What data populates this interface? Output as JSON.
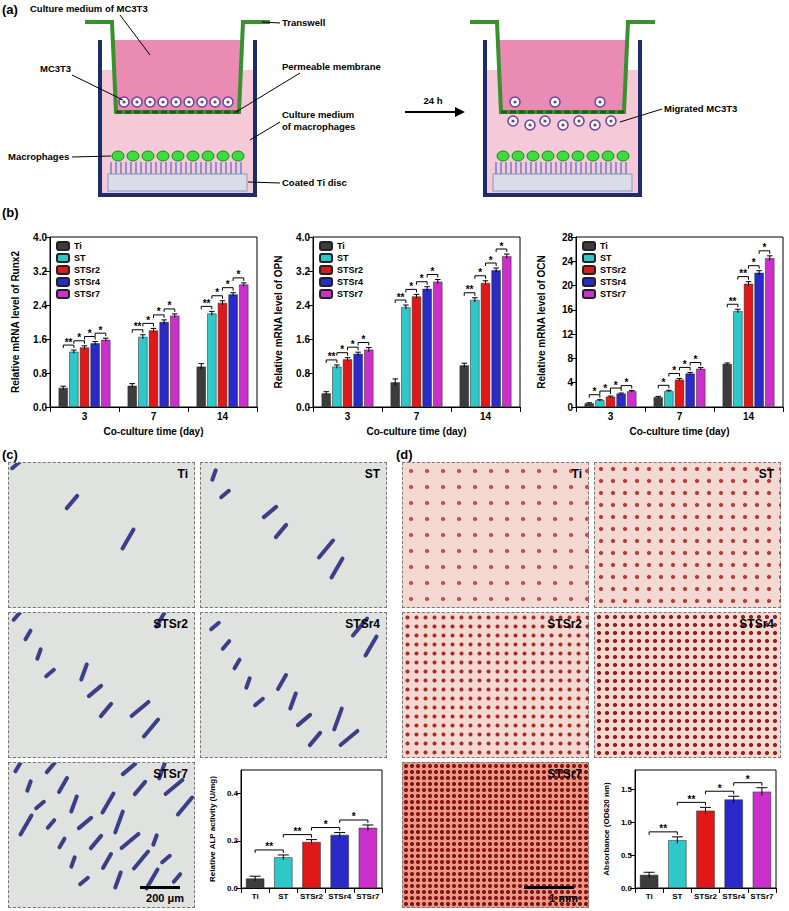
{
  "panel_labels": {
    "a": "(a)",
    "b": "(b)",
    "c": "(c)",
    "d": "(d)"
  },
  "schematic": {
    "culture_medium_mc3t3": "Culture medium of MC3T3",
    "mc3t3": "MC3T3",
    "transwell": "Transwell",
    "membrane": "Permeable membrane",
    "culture_medium_macrophages": [
      "Culture medium",
      "of macrophages"
    ],
    "macrophages": "Macrophages",
    "ti_disc": "Coated Ti disc",
    "time": "24 h",
    "migrated": "Migrated MC3T3"
  },
  "chart_data": [
    {
      "type": "bar",
      "ylabel": "Relative mRNA level of Runx2",
      "xlabel": "Co-culture time (day)",
      "categories": [
        "3",
        "7",
        "14"
      ],
      "series": [
        {
          "name": "Ti",
          "color": "#3c3c3c",
          "values": [
            0.45,
            0.5,
            0.95
          ],
          "errors": [
            0.04,
            0.05,
            0.07
          ]
        },
        {
          "name": "ST",
          "color": "#2ec8c8",
          "values": [
            1.3,
            1.65,
            2.2
          ],
          "errors": [
            0.04,
            0.05,
            0.05
          ]
        },
        {
          "name": "STSr2",
          "color": "#e01818",
          "values": [
            1.4,
            1.8,
            2.45
          ],
          "errors": [
            0.04,
            0.05,
            0.05
          ]
        },
        {
          "name": "STSr4",
          "color": "#2a2ac8",
          "values": [
            1.5,
            2.0,
            2.65
          ],
          "errors": [
            0.04,
            0.05,
            0.04
          ]
        },
        {
          "name": "STSr7",
          "color": "#cc30cc",
          "values": [
            1.58,
            2.15,
            2.88
          ],
          "errors": [
            0.04,
            0.04,
            0.04
          ]
        }
      ],
      "ylim": [
        0,
        4
      ],
      "yticks": [
        {
          "value": 0,
          "label": "0.0"
        },
        0.8,
        1.6,
        2.4,
        3.2,
        {
          "value": 4,
          "label": "4.0"
        }
      ],
      "grid": false,
      "legend": "upper left",
      "significance": [
        {
          "category": "3",
          "pair": [
            "Ti",
            "ST"
          ],
          "text": "**"
        },
        {
          "category": "3",
          "pair": [
            "ST",
            "STSr2"
          ],
          "text": "*"
        },
        {
          "category": "3",
          "pair": [
            "STSr2",
            "STSr4"
          ],
          "text": "*"
        },
        {
          "category": "3",
          "pair": [
            "STSr4",
            "STSr7"
          ],
          "text": "*"
        },
        {
          "category": "7",
          "pair": [
            "Ti",
            "ST"
          ],
          "text": "**"
        },
        {
          "category": "7",
          "pair": [
            "ST",
            "STSr2"
          ],
          "text": "*"
        },
        {
          "category": "7",
          "pair": [
            "STSr2",
            "STSr4"
          ],
          "text": "*"
        },
        {
          "category": "7",
          "pair": [
            "STSr4",
            "STSr7"
          ],
          "text": "*"
        },
        {
          "category": "14",
          "pair": [
            "Ti",
            "ST"
          ],
          "text": "**"
        },
        {
          "category": "14",
          "pair": [
            "ST",
            "STSr2"
          ],
          "text": "*"
        },
        {
          "category": "14",
          "pair": [
            "STSr2",
            "STSr4"
          ],
          "text": "*"
        },
        {
          "category": "14",
          "pair": [
            "STSr4",
            "STSr7"
          ],
          "text": "*"
        }
      ]
    },
    {
      "type": "bar",
      "ylabel": "Relative mRNA level of OPN",
      "xlabel": "Co-culture time (day)",
      "categories": [
        "3",
        "7",
        "14"
      ],
      "series": [
        {
          "name": "Ti",
          "color": "#3c3c3c",
          "values": [
            0.32,
            0.58,
            0.98
          ],
          "errors": [
            0.04,
            0.08,
            0.05
          ]
        },
        {
          "name": "ST",
          "color": "#2ec8c8",
          "values": [
            0.95,
            2.35,
            2.52
          ],
          "errors": [
            0.04,
            0.05,
            0.05
          ]
        },
        {
          "name": "STSr2",
          "color": "#e01818",
          "values": [
            1.12,
            2.6,
            2.92
          ],
          "errors": [
            0.04,
            0.05,
            0.05
          ]
        },
        {
          "name": "STSr4",
          "color": "#2a2ac8",
          "values": [
            1.25,
            2.78,
            3.22
          ],
          "errors": [
            0.04,
            0.05,
            0.05
          ]
        },
        {
          "name": "STSr7",
          "color": "#cc30cc",
          "values": [
            1.35,
            2.95,
            3.55
          ],
          "errors": [
            0.05,
            0.05,
            0.05
          ]
        }
      ],
      "ylim": [
        0,
        4
      ],
      "yticks": [
        {
          "value": 0,
          "label": "0.0"
        },
        0.8,
        1.6,
        2.4,
        3.2,
        {
          "value": 4,
          "label": "4.0"
        }
      ],
      "grid": false,
      "legend": "upper left",
      "significance": [
        {
          "category": "3",
          "pair": [
            "Ti",
            "ST"
          ],
          "text": "**"
        },
        {
          "category": "3",
          "pair": [
            "ST",
            "STSr2"
          ],
          "text": "*"
        },
        {
          "category": "3",
          "pair": [
            "STSr2",
            "STSr4"
          ],
          "text": "*"
        },
        {
          "category": "3",
          "pair": [
            "STSr4",
            "STSr7"
          ],
          "text": "*"
        },
        {
          "category": "7",
          "pair": [
            "Ti",
            "ST"
          ],
          "text": "**"
        },
        {
          "category": "7",
          "pair": [
            "ST",
            "STSr2"
          ],
          "text": "*"
        },
        {
          "category": "7",
          "pair": [
            "STSr2",
            "STSr4"
          ],
          "text": "*"
        },
        {
          "category": "7",
          "pair": [
            "STSr4",
            "STSr7"
          ],
          "text": "*"
        },
        {
          "category": "14",
          "pair": [
            "Ti",
            "ST"
          ],
          "text": "**"
        },
        {
          "category": "14",
          "pair": [
            "ST",
            "STSr2"
          ],
          "text": "*"
        },
        {
          "category": "14",
          "pair": [
            "STSr2",
            "STSr4"
          ],
          "text": "*"
        },
        {
          "category": "14",
          "pair": [
            "STSr4",
            "STSr7"
          ],
          "text": "*"
        }
      ]
    },
    {
      "type": "bar",
      "ylabel": "Relative mRNA level of OCN",
      "xlabel": "Co-culture time (day)",
      "categories": [
        "3",
        "7",
        "14"
      ],
      "series": [
        {
          "name": "Ti",
          "color": "#3c3c3c",
          "values": [
            0.6,
            1.6,
            7.1
          ],
          "errors": [
            0.1,
            0.15,
            0.15
          ]
        },
        {
          "name": "ST",
          "color": "#2ec8c8",
          "values": [
            1.1,
            2.6,
            15.8
          ],
          "errors": [
            0.1,
            0.15,
            0.3
          ]
        },
        {
          "name": "STSr2",
          "color": "#e01818",
          "values": [
            1.7,
            4.5,
            20.3
          ],
          "errors": [
            0.1,
            0.2,
            0.35
          ]
        },
        {
          "name": "STSr4",
          "color": "#2a2ac8",
          "values": [
            2.2,
            5.5,
            22.1
          ],
          "errors": [
            0.1,
            0.2,
            0.35
          ]
        },
        {
          "name": "STSr7",
          "color": "#cc30cc",
          "values": [
            2.6,
            6.3,
            24.5
          ],
          "errors": [
            0.1,
            0.2,
            0.4
          ]
        }
      ],
      "ylim": [
        0,
        28
      ],
      "yticks": [
        0,
        4,
        8,
        12,
        16,
        20,
        24,
        28
      ],
      "grid": false,
      "legend": "upper left",
      "significance": [
        {
          "category": "3",
          "pair": [
            "Ti",
            "ST"
          ],
          "text": "*"
        },
        {
          "category": "3",
          "pair": [
            "ST",
            "STSr2"
          ],
          "text": "*"
        },
        {
          "category": "3",
          "pair": [
            "STSr2",
            "STSr4"
          ],
          "text": "*"
        },
        {
          "category": "3",
          "pair": [
            "STSr4",
            "STSr7"
          ],
          "text": "*"
        },
        {
          "category": "7",
          "pair": [
            "Ti",
            "ST"
          ],
          "text": "*"
        },
        {
          "category": "7",
          "pair": [
            "ST",
            "STSr2"
          ],
          "text": "*"
        },
        {
          "category": "7",
          "pair": [
            "STSr2",
            "STSr4"
          ],
          "text": "*"
        },
        {
          "category": "7",
          "pair": [
            "STSr4",
            "STSr7"
          ],
          "text": "*"
        },
        {
          "category": "14",
          "pair": [
            "Ti",
            "ST"
          ],
          "text": "**"
        },
        {
          "category": "14",
          "pair": [
            "ST",
            "STSr2"
          ],
          "text": "**"
        },
        {
          "category": "14",
          "pair": [
            "STSr2",
            "STSr4"
          ],
          "text": "*"
        },
        {
          "category": "14",
          "pair": [
            "STSr4",
            "STSr7"
          ],
          "text": "*"
        }
      ]
    },
    {
      "type": "bar",
      "ylabel": "Relative ALP activity (U/mg)",
      "categories": [
        "Ti",
        "ST",
        "STSr2",
        "STSr4",
        "STSr7"
      ],
      "values": [
        0.04,
        0.13,
        0.195,
        0.225,
        0.255
      ],
      "errors": [
        0.01,
        0.01,
        0.01,
        0.01,
        0.012
      ],
      "colors": [
        "#3c3c3c",
        "#2ec8c8",
        "#e01818",
        "#2a2ac8",
        "#cc30cc"
      ],
      "ylim": [
        0,
        0.5
      ],
      "yticks": [
        {
          "value": 0,
          "label": "0.0"
        },
        0.2,
        0.4
      ],
      "grid": false,
      "significance": [
        {
          "pair": [
            "Ti",
            "ST"
          ],
          "text": "**"
        },
        {
          "pair": [
            "ST",
            "STSr2"
          ],
          "text": "**"
        },
        {
          "pair": [
            "STSr2",
            "STSr4"
          ],
          "text": "*"
        },
        {
          "pair": [
            "STSr4",
            "STSr7"
          ],
          "text": "*"
        }
      ]
    },
    {
      "type": "bar",
      "ylabel": "Absorbance (OD620 nm)",
      "categories": [
        "Ti",
        "ST",
        "STSr2",
        "STSr4",
        "STSr7"
      ],
      "values": [
        0.2,
        0.73,
        1.18,
        1.35,
        1.47
      ],
      "errors": [
        0.04,
        0.05,
        0.05,
        0.05,
        0.06
      ],
      "colors": [
        "#3c3c3c",
        "#2ec8c8",
        "#e01818",
        "#2a2ac8",
        "#cc30cc"
      ],
      "ylim": [
        0,
        1.8
      ],
      "yticks": [
        {
          "value": 0,
          "label": "0.0"
        },
        0.5,
        {
          "value": 1,
          "label": "1.0"
        },
        1.5
      ],
      "grid": false,
      "significance": [
        {
          "pair": [
            "Ti",
            "ST"
          ],
          "text": "**"
        },
        {
          "pair": [
            "ST",
            "STSr2"
          ],
          "text": "**"
        },
        {
          "pair": [
            "STSr2",
            "STSr4"
          ],
          "text": "*"
        },
        {
          "pair": [
            "STSr4",
            "STSr7"
          ],
          "text": "*"
        }
      ]
    }
  ],
  "micrographs": {
    "c": {
      "panels": [
        "Ti",
        "ST",
        "STSr2",
        "STSr4",
        "STSr7"
      ],
      "scale_bar": "200 μm"
    },
    "d": {
      "panels": [
        "Ti",
        "ST",
        "STSr2",
        "STSr4",
        "STSr7"
      ],
      "scale_bar": "1 mm"
    }
  }
}
